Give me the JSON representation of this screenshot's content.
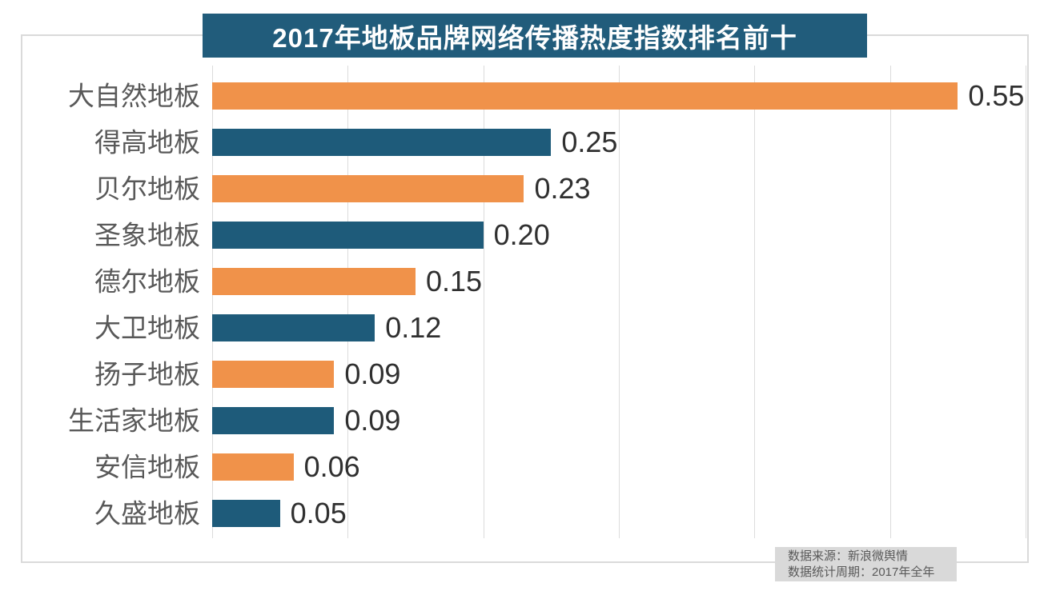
{
  "chart_data": {
    "type": "bar",
    "orientation": "horizontal",
    "title": "2017年地板品牌网络传播热度指数排名前十",
    "categories": [
      "大自然地板",
      "得高地板",
      "贝尔地板",
      "圣象地板",
      "德尔地板",
      "大卫地板",
      "扬子地板",
      "生活家地板",
      "安信地板",
      "久盛地板"
    ],
    "values": [
      0.55,
      0.25,
      0.23,
      0.2,
      0.15,
      0.12,
      0.09,
      0.09,
      0.06,
      0.05
    ],
    "value_labels": [
      "0.55",
      "0.25",
      "0.23",
      "0.20",
      "0.15",
      "0.12",
      "0.09",
      "0.09",
      "0.06",
      "0.05"
    ],
    "xlabel": "",
    "ylabel": "",
    "xlim": [
      0,
      0.6
    ],
    "x_tick_step": 0.1,
    "grid": true,
    "legend": false,
    "x_tick_labels_shown": false,
    "bar_colors_alternating": [
      "#F0924A",
      "#1E5B7A"
    ]
  },
  "footer": {
    "source": "数据来源：新浪微舆情",
    "period": "数据统计周期：2017年全年"
  },
  "colors": {
    "bar_orange": "#F0924A",
    "bar_blue": "#1E5B7A",
    "title_banner_bg": "#215C7B",
    "title_text": "#FFFFFF",
    "frame_border": "#DADADA",
    "gridline": "#DCDCDC",
    "category_label": "#595959",
    "value_label": "#303030",
    "footer_bg": "#D9D9D9",
    "footer_text": "#595959",
    "background": "#FFFFFF"
  }
}
